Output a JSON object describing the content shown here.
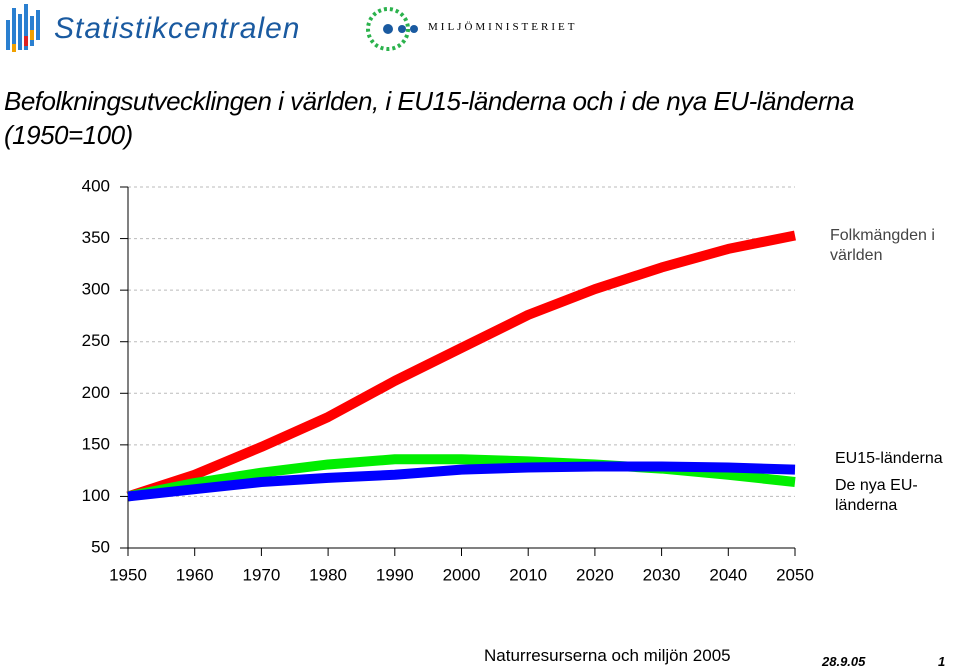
{
  "header": {
    "logo_left": "Statistikcentralen",
    "logo_right": "MILJÖMINISTERIET"
  },
  "chart_data": {
    "type": "line",
    "title": "Befolkningsutvecklingen i världen, i EU15-länderna och i de nya EU-länderna (1950=100)",
    "x": [
      1950,
      1960,
      1970,
      1980,
      1990,
      2000,
      2010,
      2020,
      2030,
      2040,
      2050
    ],
    "series": [
      {
        "name": "Folkmängden i världen",
        "color": "#ff0000",
        "values": [
          100,
          121,
          148,
          177,
          212,
          244,
          276,
          301,
          322,
          340,
          353
        ]
      },
      {
        "name": "EU15-länderna",
        "color": "#0000ff",
        "values": [
          100,
          107,
          114,
          118,
          121,
          126,
          128,
          129,
          129,
          128,
          126
        ]
      },
      {
        "name": "De nya EU-länderna",
        "color": "#00ee00",
        "values": [
          100,
          113,
          123,
          131,
          136,
          136,
          134,
          131,
          127,
          121,
          114
        ]
      }
    ],
    "xlim": [
      1950,
      2050
    ],
    "xticks": [
      1950,
      1960,
      1970,
      1980,
      1990,
      2000,
      2010,
      2020,
      2030,
      2040,
      2050
    ],
    "ylim": [
      50,
      400
    ],
    "yticks": [
      50,
      100,
      150,
      200,
      250,
      300,
      350,
      400
    ],
    "grid": true
  },
  "footer": {
    "text": "Naturresurserna och miljön 2005",
    "date": "28.9.05",
    "page": "1"
  }
}
